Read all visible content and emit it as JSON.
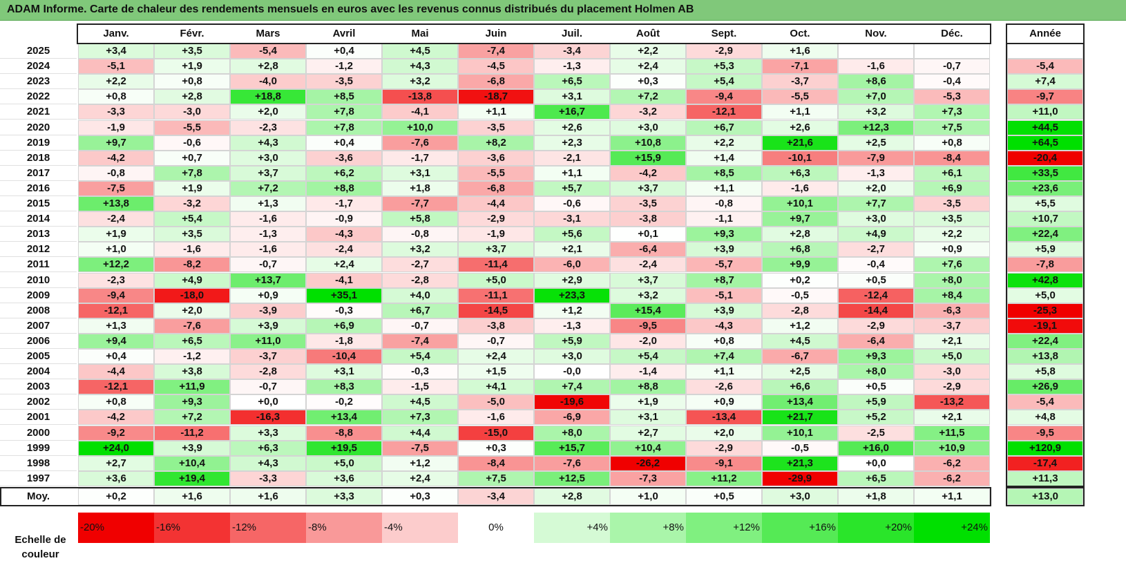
{
  "title": "ADAM Informe. Carte de chaleur des rendements mensuels en euros avec les revenus connus distribués du placement Holmen AB",
  "chart_data": {
    "type": "heatmap",
    "title": "ADAM Informe. Carte de chaleur des rendements mensuels en euros avec les revenus connus distribués du placement Holmen AB",
    "months": [
      "Janv.",
      "Févr.",
      "Mars",
      "Avril",
      "Mai",
      "Juin",
      "Juil.",
      "Août",
      "Sept.",
      "Oct.",
      "Nov.",
      "Déc."
    ],
    "year_header": "Année",
    "rows": [
      {
        "label": "2025",
        "values": [
          "+3,4",
          "+3,5",
          "-5,4",
          "+0,4",
          "+4,5",
          "-7,4",
          "-3,4",
          "+2,2",
          "-2,9",
          "+1,6",
          "",
          ""
        ],
        "year": ""
      },
      {
        "label": "2024",
        "values": [
          "-5,1",
          "+1,9",
          "+2,8",
          "-1,2",
          "+4,3",
          "-4,5",
          "-1,3",
          "+2,4",
          "+5,3",
          "-7,1",
          "-1,6",
          "-0,7"
        ],
        "year": "-5,4"
      },
      {
        "label": "2023",
        "values": [
          "+2,2",
          "+0,8",
          "-4,0",
          "-3,5",
          "+3,2",
          "-6,8",
          "+6,5",
          "+0,3",
          "+5,4",
          "-3,7",
          "+8,6",
          "-0,4"
        ],
        "year": "+7,4"
      },
      {
        "label": "2022",
        "values": [
          "+0,8",
          "+2,8",
          "+18,8",
          "+8,5",
          "-13,8",
          "-18,7",
          "+3,1",
          "+7,2",
          "-9,4",
          "-5,5",
          "+7,0",
          "-5,3"
        ],
        "year": "-9,7"
      },
      {
        "label": "2021",
        "values": [
          "-3,3",
          "-3,0",
          "+2,0",
          "+7,8",
          "-4,1",
          "+1,1",
          "+16,7",
          "-3,2",
          "-12,1",
          "+1,1",
          "+3,2",
          "+7,3"
        ],
        "year": "+11,0"
      },
      {
        "label": "2020",
        "values": [
          "-1,9",
          "-5,5",
          "-2,3",
          "+7,8",
          "+10,0",
          "-3,5",
          "+2,6",
          "+3,0",
          "+6,7",
          "+2,6",
          "+12,3",
          "+7,5"
        ],
        "year": "+44,5"
      },
      {
        "label": "2019",
        "values": [
          "+9,7",
          "-0,6",
          "+4,3",
          "+0,4",
          "-7,6",
          "+8,2",
          "+2,3",
          "+10,8",
          "+2,2",
          "+21,6",
          "+2,5",
          "+0,8"
        ],
        "year": "+64,5"
      },
      {
        "label": "2018",
        "values": [
          "-4,2",
          "+0,7",
          "+3,0",
          "-3,6",
          "-1,7",
          "-3,6",
          "-2,1",
          "+15,9",
          "+1,4",
          "-10,1",
          "-7,9",
          "-8,4"
        ],
        "year": "-20,4"
      },
      {
        "label": "2017",
        "values": [
          "-0,8",
          "+7,8",
          "+3,7",
          "+6,2",
          "+3,1",
          "-5,5",
          "+1,1",
          "-4,2",
          "+8,5",
          "+6,3",
          "-1,3",
          "+6,1"
        ],
        "year": "+33,5"
      },
      {
        "label": "2016",
        "values": [
          "-7,5",
          "+1,9",
          "+7,2",
          "+8,8",
          "+1,8",
          "-6,8",
          "+5,7",
          "+3,7",
          "+1,1",
          "-1,6",
          "+2,0",
          "+6,9"
        ],
        "year": "+23,6"
      },
      {
        "label": "2015",
        "values": [
          "+13,8",
          "-3,2",
          "+1,3",
          "-1,7",
          "-7,7",
          "-4,4",
          "-0,6",
          "-3,5",
          "-0,8",
          "+10,1",
          "+7,7",
          "-3,5"
        ],
        "year": "+5,5"
      },
      {
        "label": "2014",
        "values": [
          "-2,4",
          "+5,4",
          "-1,6",
          "-0,9",
          "+5,8",
          "-2,9",
          "-3,1",
          "-3,8",
          "-1,1",
          "+9,7",
          "+3,0",
          "+3,5"
        ],
        "year": "+10,7"
      },
      {
        "label": "2013",
        "values": [
          "+1,9",
          "+3,5",
          "-1,3",
          "-4,3",
          "-0,8",
          "-1,9",
          "+5,6",
          "+0,1",
          "+9,3",
          "+2,8",
          "+4,9",
          "+2,2"
        ],
        "year": "+22,4"
      },
      {
        "label": "2012",
        "values": [
          "+1,0",
          "-1,6",
          "-1,6",
          "-2,4",
          "+3,2",
          "+3,7",
          "+2,1",
          "-6,4",
          "+3,9",
          "+6,8",
          "-2,7",
          "+0,9"
        ],
        "year": "+5,9"
      },
      {
        "label": "2011",
        "values": [
          "+12,2",
          "-8,2",
          "-0,7",
          "+2,4",
          "-2,7",
          "-11,4",
          "-6,0",
          "-2,4",
          "-5,7",
          "+9,9",
          "-0,4",
          "+7,6"
        ],
        "year": "-7,8"
      },
      {
        "label": "2010",
        "values": [
          "-2,3",
          "+4,9",
          "+13,7",
          "-4,1",
          "-2,8",
          "+5,0",
          "+2,9",
          "+3,7",
          "+8,7",
          "+0,2",
          "+0,5",
          "+8,0"
        ],
        "year": "+42,8"
      },
      {
        "label": "2009",
        "values": [
          "-9,4",
          "-18,0",
          "+0,9",
          "+35,1",
          "+4,0",
          "-11,1",
          "+23,3",
          "+3,2",
          "-5,1",
          "-0,5",
          "-12,4",
          "+8,4"
        ],
        "year": "+5,0"
      },
      {
        "label": "2008",
        "values": [
          "-12,1",
          "+2,0",
          "-3,9",
          "-0,3",
          "+6,7",
          "-14,5",
          "+1,2",
          "+15,4",
          "+3,9",
          "-2,8",
          "-14,4",
          "-6,3"
        ],
        "year": "-25,3"
      },
      {
        "label": "2007",
        "values": [
          "+1,3",
          "-7,6",
          "+3,9",
          "+6,9",
          "-0,7",
          "-3,8",
          "-1,3",
          "-9,5",
          "-4,3",
          "+1,2",
          "-2,9",
          "-3,7"
        ],
        "year": "-19,1"
      },
      {
        "label": "2006",
        "values": [
          "+9,4",
          "+6,5",
          "+11,0",
          "-1,8",
          "-7,4",
          "-0,7",
          "+5,9",
          "-2,0",
          "+0,8",
          "+4,5",
          "-6,4",
          "+2,1"
        ],
        "year": "+22,4"
      },
      {
        "label": "2005",
        "values": [
          "+0,4",
          "-1,2",
          "-3,7",
          "-10,4",
          "+5,4",
          "+2,4",
          "+3,0",
          "+5,4",
          "+7,4",
          "-6,7",
          "+9,3",
          "+5,0"
        ],
        "year": "+13,8"
      },
      {
        "label": "2004",
        "values": [
          "-4,4",
          "+3,8",
          "-2,8",
          "+3,1",
          "-0,3",
          "+1,5",
          "-0,0",
          "-1,4",
          "+1,1",
          "+2,5",
          "+8,0",
          "-3,0"
        ],
        "year": "+5,8"
      },
      {
        "label": "2003",
        "values": [
          "-12,1",
          "+11,9",
          "-0,7",
          "+8,3",
          "-1,5",
          "+4,1",
          "+7,4",
          "+8,8",
          "-2,6",
          "+6,6",
          "+0,5",
          "-2,9"
        ],
        "year": "+26,9"
      },
      {
        "label": "2002",
        "values": [
          "+0,8",
          "+9,3",
          "+0,0",
          "-0,2",
          "+4,5",
          "-5,0",
          "-19,6",
          "+1,9",
          "+0,9",
          "+13,4",
          "+5,9",
          "-13,2"
        ],
        "year": "-5,4"
      },
      {
        "label": "2001",
        "values": [
          "-4,2",
          "+7,2",
          "-16,3",
          "+13,4",
          "+7,3",
          "-1,6",
          "-6,9",
          "+3,1",
          "-13,4",
          "+21,7",
          "+5,2",
          "+2,1"
        ],
        "year": "+4,8"
      },
      {
        "label": "2000",
        "values": [
          "-9,2",
          "-11,2",
          "+3,3",
          "-8,8",
          "+4,4",
          "-15,0",
          "+8,0",
          "+2,7",
          "+2,0",
          "+10,1",
          "-2,5",
          "+11,5"
        ],
        "year": "-9,5"
      },
      {
        "label": "1999",
        "values": [
          "+24,0",
          "+3,9",
          "+6,3",
          "+19,5",
          "-7,5",
          "+0,3",
          "+15,7",
          "+10,4",
          "-2,9",
          "-0,5",
          "+16,0",
          "+10,9"
        ],
        "year": "+120,9"
      },
      {
        "label": "1998",
        "values": [
          "+2,7",
          "+10,4",
          "+4,3",
          "+5,0",
          "+1,2",
          "-8,4",
          "-7,6",
          "-26,2",
          "-9,1",
          "+21,3",
          "+0,0",
          "-6,2"
        ],
        "year": "-17,4"
      },
      {
        "label": "1997",
        "values": [
          "+3,6",
          "+19,4",
          "-3,3",
          "+3,6",
          "+2,4",
          "+7,5",
          "+12,5",
          "-7,3",
          "+11,2",
          "-29,9",
          "+6,5",
          "-6,2"
        ],
        "year": "+11,3"
      }
    ],
    "average": {
      "label": "Moy.",
      "values": [
        "+0,2",
        "+1,6",
        "+1,6",
        "+3,3",
        "+0,3",
        "-3,4",
        "+2,8",
        "+1,0",
        "+0,5",
        "+3,0",
        "+1,8",
        "+1,1"
      ],
      "year": "+13,0"
    },
    "color_scale": {
      "label": "Echelle de couleur",
      "stops": [
        "-20%",
        "-16%",
        "-12%",
        "-8%",
        "-4%",
        "0%",
        "+4%",
        "+8%",
        "+12%",
        "+16%",
        "+20%",
        "+24%"
      ],
      "negative_color": "#f00000",
      "neutral_color": "#ffffff",
      "positive_color": "#00e000"
    }
  }
}
